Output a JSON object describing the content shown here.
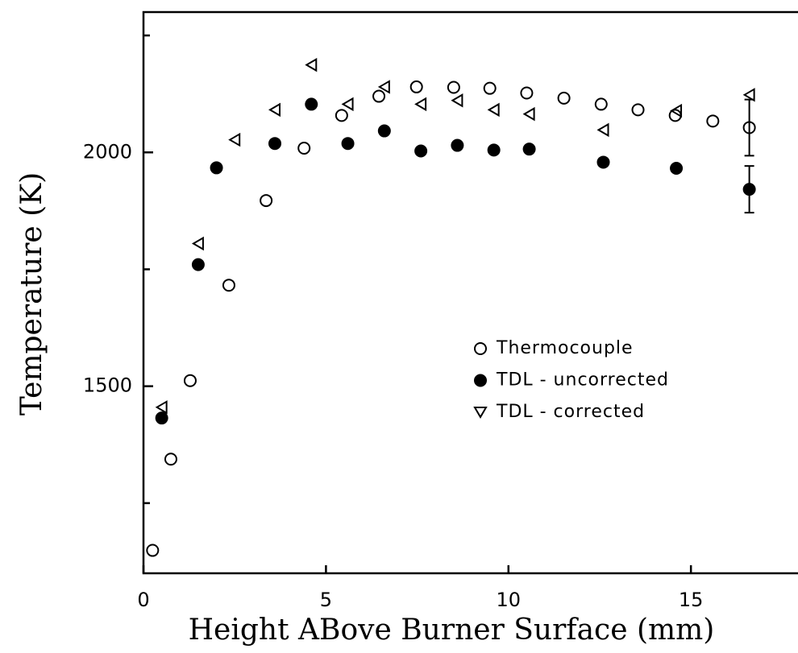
{
  "chart_data": {
    "type": "scatter",
    "xlabel": "Height ABove Burner Surface (mm)",
    "ylabel": "Temperature (K)",
    "xlim": [
      0,
      18
    ],
    "ylim": [
      1100,
      2300
    ],
    "xticks": [
      0,
      5,
      10,
      15
    ],
    "yticks": [
      1500,
      2000
    ],
    "minor_yticks": [
      1250,
      1750,
      2250
    ],
    "series": [
      {
        "name": "Thermocouple",
        "marker": "open-circle",
        "color": "#000000",
        "x": [
          0.25,
          0.75,
          1.28,
          2.34,
          3.36,
          4.4,
          5.43,
          6.45,
          7.48,
          8.5,
          9.49,
          10.5,
          11.52,
          12.54,
          13.55,
          14.57,
          15.6,
          16.6
        ],
        "values": [
          1149,
          1344,
          1512,
          1716,
          1897,
          2009,
          2079,
          2120,
          2140,
          2139,
          2137,
          2127,
          2116,
          2103,
          2091,
          2079,
          2067,
          2053
        ],
        "errors": [
          null,
          null,
          null,
          null,
          null,
          null,
          null,
          null,
          null,
          null,
          null,
          null,
          null,
          null,
          null,
          null,
          null,
          60
        ]
      },
      {
        "name": "TDL - uncorrected",
        "marker": "filled-circle",
        "color": "#000000",
        "x": [
          0.5,
          1.5,
          2.0,
          3.6,
          4.6,
          5.6,
          6.6,
          7.6,
          8.6,
          9.6,
          10.57,
          12.6,
          14.6,
          16.6
        ],
        "values": [
          1432,
          1760,
          1967,
          2019,
          2103,
          2019,
          2046,
          2003,
          2015,
          2005,
          2007,
          1979,
          1966,
          1921
        ],
        "errors": [
          null,
          null,
          null,
          null,
          null,
          null,
          null,
          null,
          null,
          null,
          null,
          null,
          null,
          50
        ]
      },
      {
        "name": "TDL - corrected",
        "marker": "triangle",
        "color": "#000000",
        "x": [
          0.5,
          1.5,
          2.5,
          3.6,
          4.6,
          5.6,
          6.6,
          7.6,
          8.6,
          9.6,
          10.57,
          12.6,
          14.6,
          16.6
        ],
        "values": [
          1455,
          1805,
          2027,
          2091,
          2187,
          2103,
          2140,
          2103,
          2111,
          2091,
          2082,
          2048,
          2089,
          2123
        ],
        "errors": [
          null,
          null,
          null,
          null,
          null,
          null,
          null,
          null,
          null,
          null,
          null,
          null,
          null,
          null
        ]
      }
    ]
  }
}
